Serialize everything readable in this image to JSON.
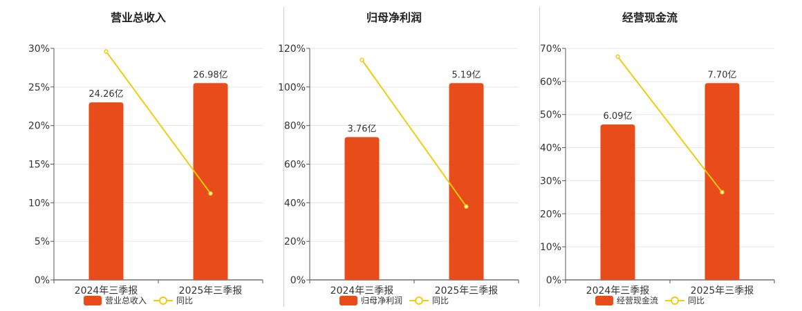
{
  "colors": {
    "bar": "#e84c1a",
    "line": "#f2cc0c",
    "grid": "#e6e6e6",
    "axis": "#555555"
  },
  "chart_data": [
    {
      "type": "bar",
      "title": "营业总收入",
      "categories": [
        "2024年三季报",
        "2025年三季报"
      ],
      "series": [
        {
          "name": "营业总收入",
          "type": "bar",
          "values": [
            23.0,
            25.5
          ],
          "labels": [
            "24.26亿",
            "26.98亿"
          ]
        },
        {
          "name": "同比",
          "type": "line",
          "values": [
            29.6,
            11.2
          ]
        }
      ],
      "ylim": [
        0,
        30
      ],
      "yticks": [
        "0%",
        "5%",
        "10%",
        "15%",
        "20%",
        "25%",
        "30%"
      ],
      "grid": true,
      "legend": "bottom"
    },
    {
      "type": "bar",
      "title": "归母净利润",
      "categories": [
        "2024年三季报",
        "2025年三季报"
      ],
      "series": [
        {
          "name": "归母净利润",
          "type": "bar",
          "values": [
            74,
            102
          ],
          "labels": [
            "3.76亿",
            "5.19亿"
          ]
        },
        {
          "name": "同比",
          "type": "line",
          "values": [
            114,
            38
          ]
        }
      ],
      "ylim": [
        0,
        120
      ],
      "yticks": [
        "0%",
        "20%",
        "40%",
        "60%",
        "80%",
        "100%",
        "120%"
      ],
      "grid": true,
      "legend": "bottom"
    },
    {
      "type": "bar",
      "title": "经营现金流",
      "categories": [
        "2024年三季报",
        "2025年三季报"
      ],
      "series": [
        {
          "name": "经营现金流",
          "type": "bar",
          "values": [
            47,
            59.5
          ],
          "labels": [
            "6.09亿",
            "7.70亿"
          ]
        },
        {
          "name": "同比",
          "type": "line",
          "values": [
            67.5,
            26.5
          ]
        }
      ],
      "ylim": [
        0,
        70
      ],
      "yticks": [
        "0%",
        "10%",
        "20%",
        "30%",
        "40%",
        "50%",
        "60%",
        "70%"
      ],
      "grid": true,
      "legend": "bottom"
    }
  ]
}
